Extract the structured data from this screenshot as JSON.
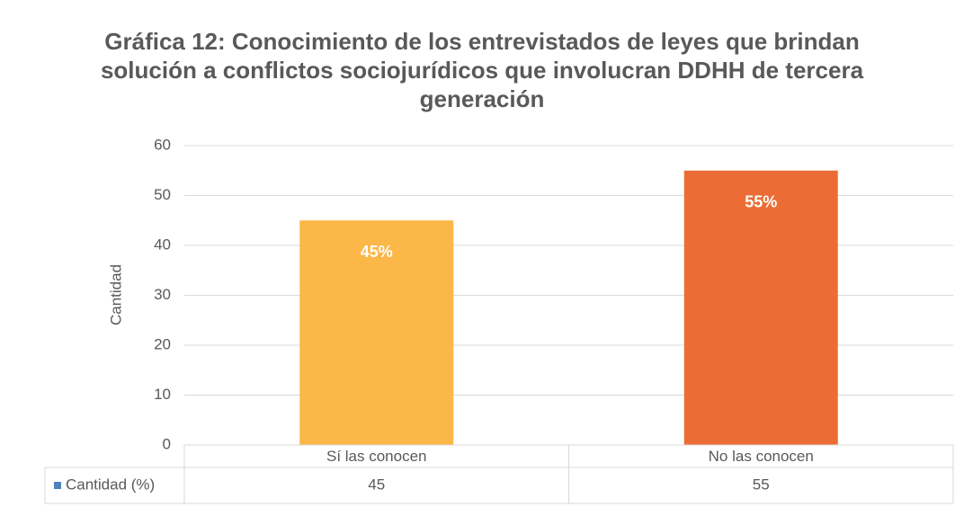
{
  "chart_data": {
    "type": "bar",
    "title": "Gráfica 12: Conocimiento de los entrevistados de leyes que brindan solución a conflictos sociojurídicos que involucran DDHH de tercera generación",
    "y_label": "Cantidad",
    "categories": [
      "Sí las conocen",
      "No las conocen"
    ],
    "series": [
      {
        "name": "Cantidad (%)",
        "color": "#4f81bd",
        "point_colors": [
          "#fbb747",
          "#eb6d35"
        ],
        "values": [
          45,
          55
        ],
        "value_labels": [
          "45%",
          "55%"
        ]
      }
    ],
    "ylim": [
      0,
      60
    ],
    "yticks": [
      0,
      10,
      20,
      30,
      40,
      50,
      60
    ],
    "grid": true,
    "data_table": true
  }
}
